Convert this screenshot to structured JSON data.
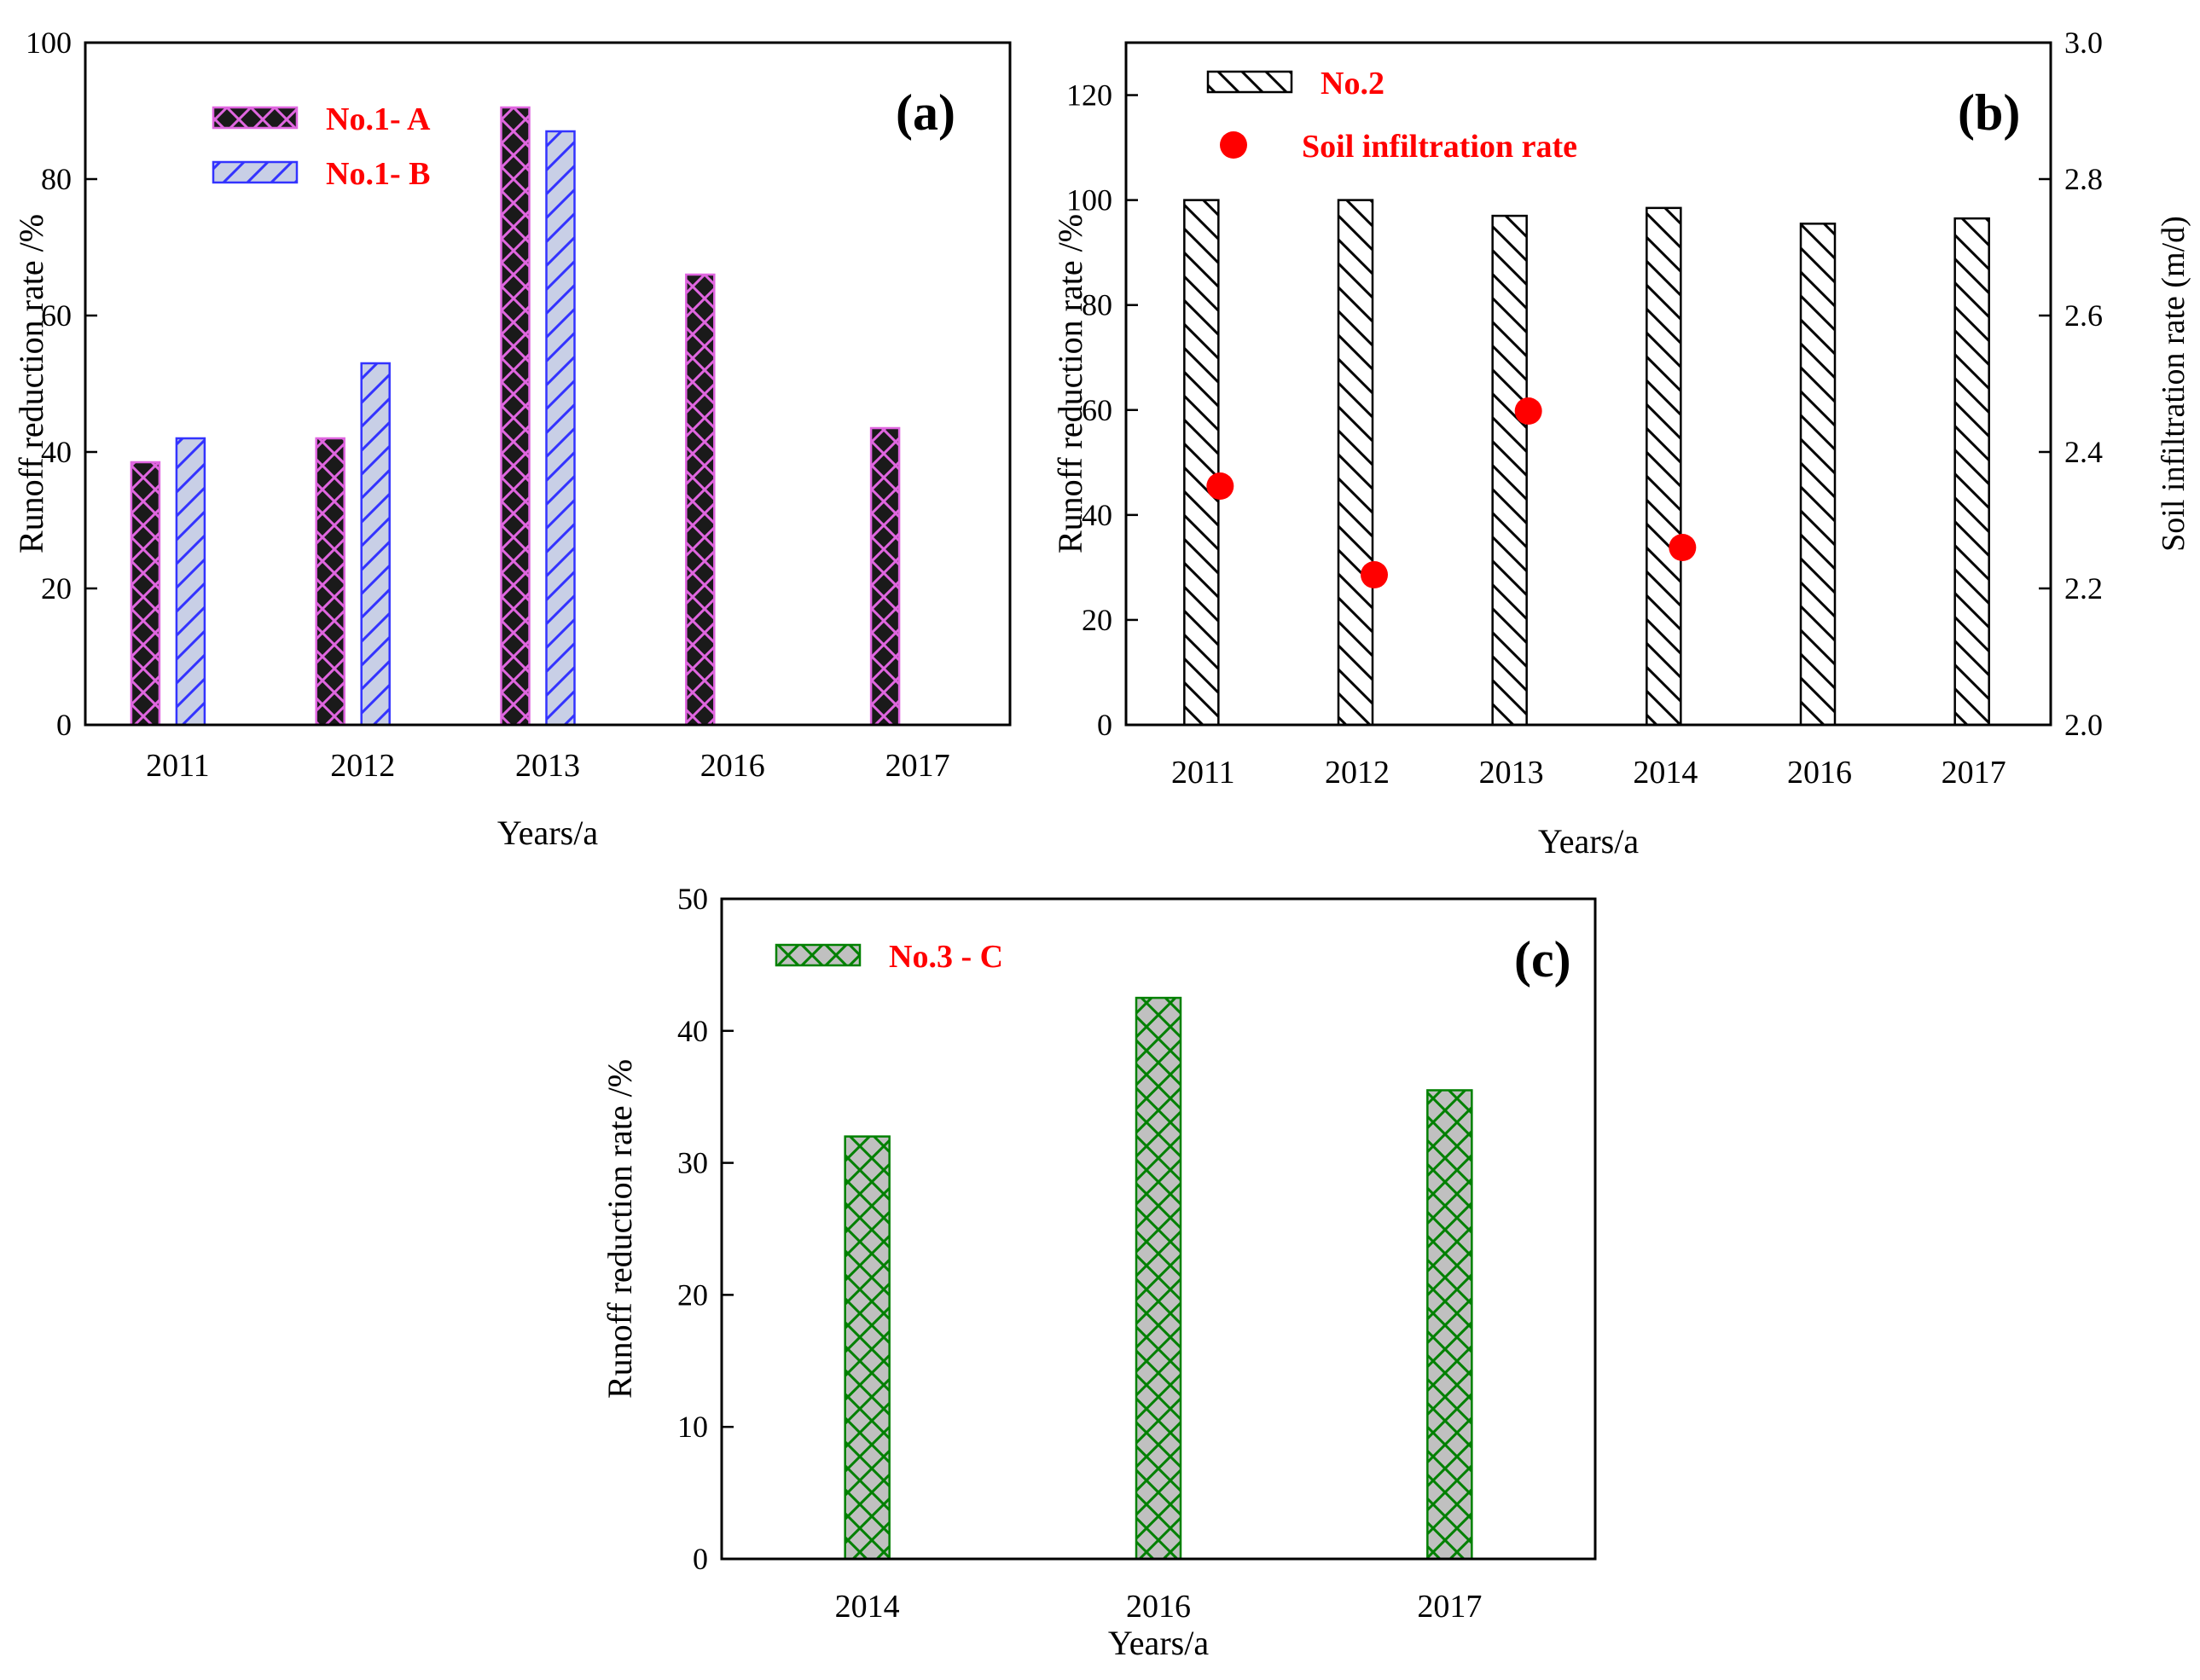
{
  "chart_data": [
    {
      "id": "a",
      "type": "bar",
      "panel_label": "(a)",
      "categories": [
        "2011",
        "2012",
        "2013",
        "2016",
        "2017"
      ],
      "series": [
        {
          "name": "No.1- A",
          "values": [
            38.5,
            42,
            90.5,
            66,
            43.5
          ],
          "fill": "#1a1a1a",
          "hatch": "#e066e0",
          "edge": "#e066e0",
          "pattern": "cross"
        },
        {
          "name": "No.1- B",
          "values": [
            42,
            53,
            87,
            null,
            null
          ],
          "fill": "#c8cfe6",
          "hatch": "#3333ff",
          "edge": "#3333ff",
          "pattern": "diag"
        }
      ],
      "xlabel": "Years/a",
      "ylabel": "Runoff reduction rate /%",
      "ylim": [
        0,
        100
      ],
      "yticks": [
        "0",
        "20",
        "40",
        "60",
        "80",
        "100"
      ],
      "legend_color": "#ff0000"
    },
    {
      "id": "b",
      "type": "bar",
      "panel_label": "(b)",
      "categories": [
        "2011",
        "2012",
        "2013",
        "2014",
        "2016",
        "2017"
      ],
      "series": [
        {
          "name": "No.2",
          "values": [
            100,
            100,
            97,
            98.5,
            95.5,
            96.5
          ],
          "fill": "#ffffff",
          "hatch": "#000000",
          "edge": "#000000",
          "pattern": "back"
        }
      ],
      "secondary": {
        "name": "Soil infiltration rate",
        "type": "scatter",
        "values": [
          2.35,
          2.22,
          2.46,
          2.26,
          null,
          null
        ],
        "color": "#ff0000"
      },
      "xlabel": "Years/a",
      "ylabel": "Runoff reduction rate /%",
      "ylabel_right": "Soil infiltration rate  (m/d)",
      "ylim": [
        0,
        130
      ],
      "yticks": [
        "0",
        "20",
        "40",
        "60",
        "80",
        "100",
        "120"
      ],
      "ylim_right": [
        2.0,
        3.0
      ],
      "yticks_right": [
        "2.0",
        "2.2",
        "2.4",
        "2.6",
        "2.8",
        "3.0"
      ],
      "legend_color": "#ff0000"
    },
    {
      "id": "c",
      "type": "bar",
      "panel_label": "(c)",
      "categories": [
        "2014",
        "2016",
        "2017"
      ],
      "series": [
        {
          "name": "No.3 - C",
          "values": [
            32,
            42.5,
            35.5
          ],
          "fill": "#c0c0c0",
          "hatch": "#008000",
          "edge": "#008000",
          "pattern": "cross"
        }
      ],
      "xlabel": "Years/a",
      "ylabel": "Runoff reduction rate /%",
      "ylim": [
        0,
        50
      ],
      "yticks": [
        "0",
        "10",
        "20",
        "30",
        "40",
        "50"
      ],
      "legend_color": "#ff0000"
    }
  ]
}
